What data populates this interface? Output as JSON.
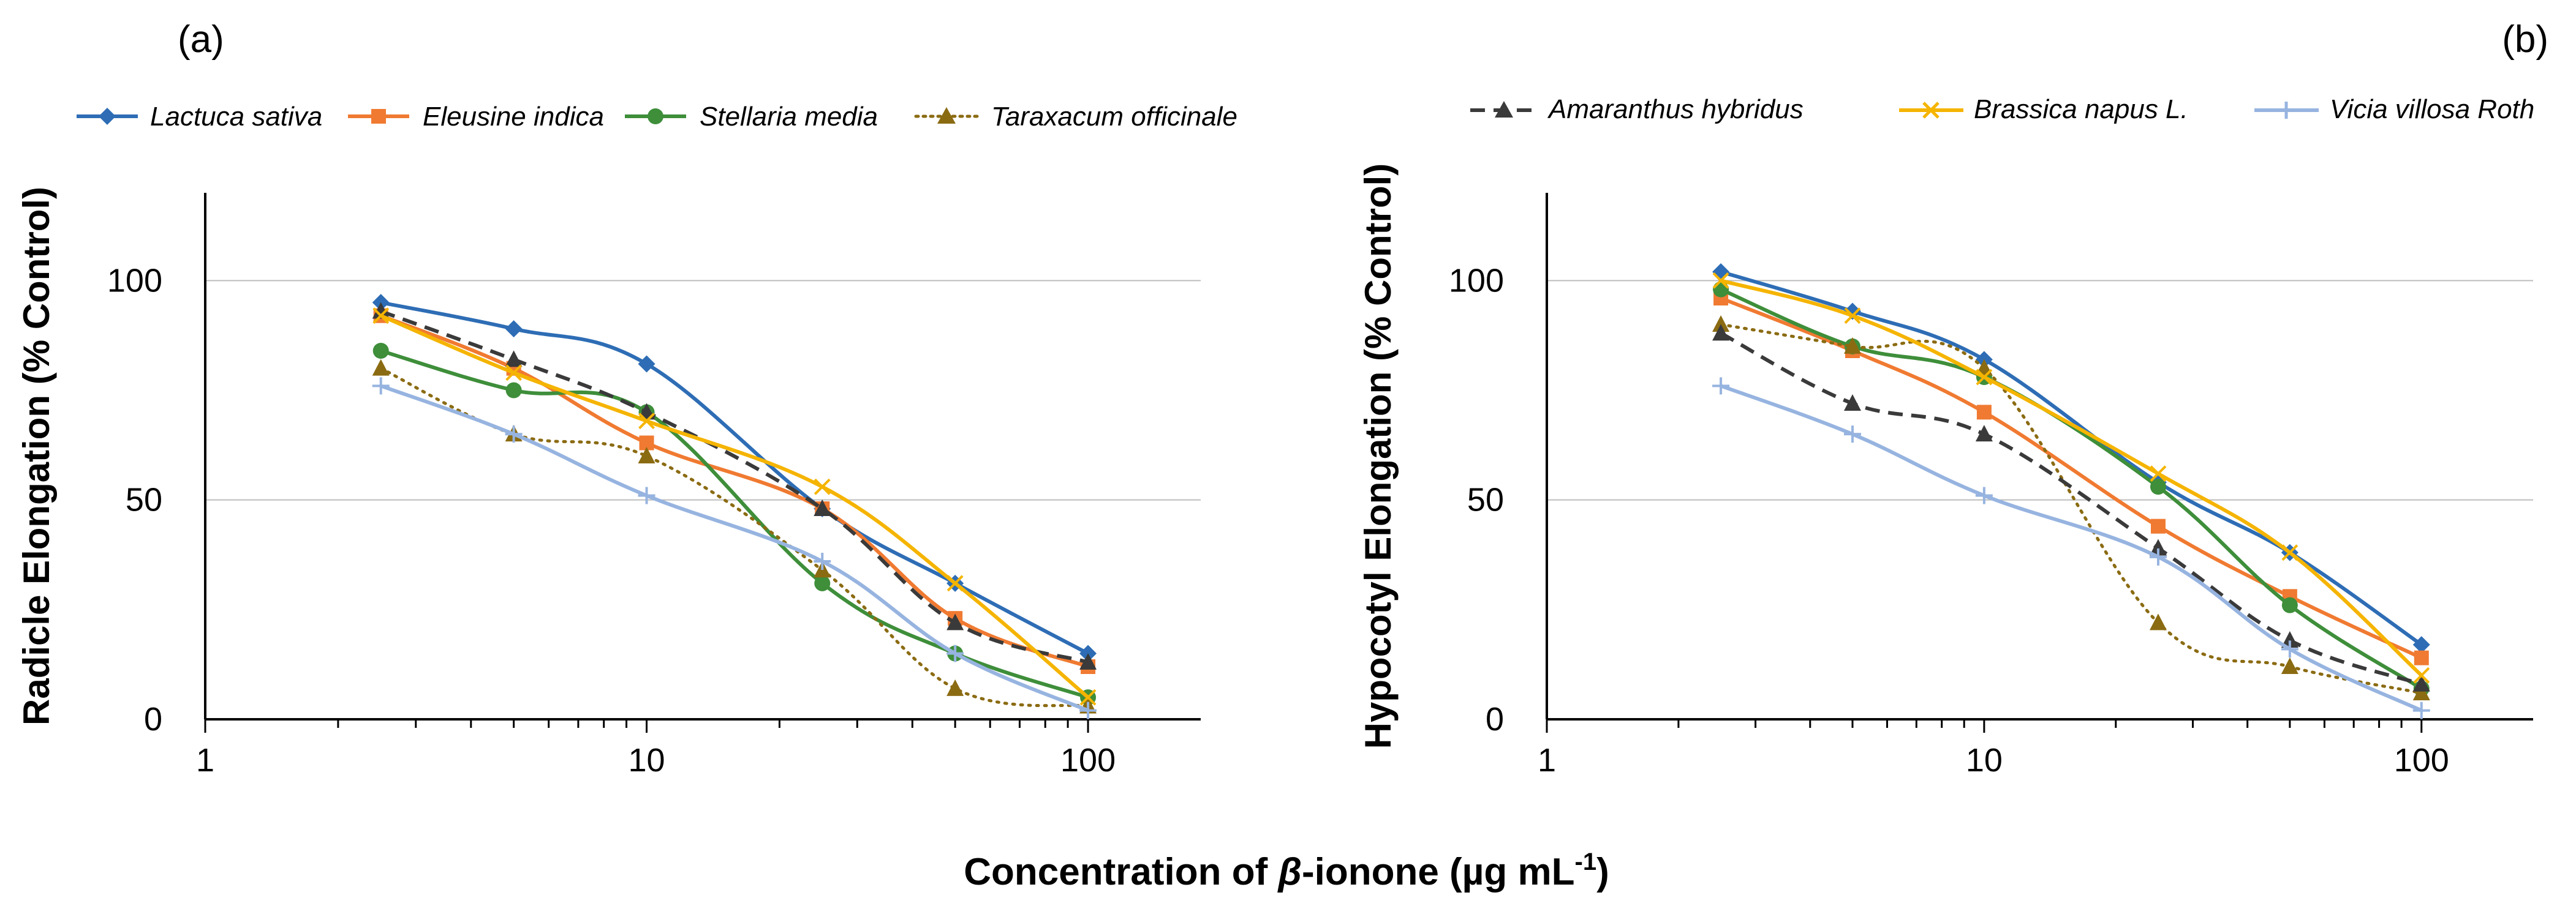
{
  "figure": {
    "xlabel_main": "Concentration of ",
    "xlabel_beta": "β",
    "xlabel_rest": "-ionone (µg mL",
    "xlabel_sup": "-1",
    "xlabel_close": ")"
  },
  "legend_row_a": [
    "Lactuca sativa",
    "Eleusine indica",
    "Stellaria media",
    "Taraxacum officinale"
  ],
  "legend_row_b": [
    "Amaranthus hybridus",
    "Brassica napus L.",
    "Vicia villosa Roth"
  ],
  "series_styles": [
    {
      "name": "Lactuca sativa",
      "color": "#2E6DB5",
      "marker": "diamond",
      "dash": "solid"
    },
    {
      "name": "Eleusine indica",
      "color": "#F07A31",
      "marker": "square",
      "dash": "solid"
    },
    {
      "name": "Stellaria media",
      "color": "#3E8E3A",
      "marker": "circle",
      "dash": "solid"
    },
    {
      "name": "Taraxacum officinale",
      "color": "#8B6B12",
      "marker": "triangle",
      "dash": "dotted"
    },
    {
      "name": "Amaranthus hybridus",
      "color": "#3A3A3A",
      "marker": "triangle",
      "dash": "dashed"
    },
    {
      "name": "Brassica napus L.",
      "color": "#F5B400",
      "marker": "x",
      "dash": "solid"
    },
    {
      "name": "Vicia villosa Roth",
      "color": "#97B4E0",
      "marker": "plus",
      "dash": "solid"
    }
  ],
  "chart_data": [
    {
      "type": "line",
      "panel_label": "(a)",
      "ylabel": "Radicle Elongation (% Control)",
      "xscale": "log",
      "xlim": [
        1,
        180
      ],
      "ylim": [
        0,
        120
      ],
      "xticks": [
        1,
        10,
        100
      ],
      "yticks": [
        0,
        50,
        100
      ],
      "grid": "horizontal",
      "x": [
        2.5,
        5,
        10,
        25,
        50,
        100
      ],
      "series": [
        {
          "name": "Lactuca sativa",
          "values": [
            95,
            89,
            81,
            48,
            31,
            15
          ]
        },
        {
          "name": "Eleusine indica",
          "values": [
            92,
            80,
            63,
            48,
            23,
            12
          ]
        },
        {
          "name": "Stellaria media",
          "values": [
            84,
            75,
            70,
            31,
            15,
            5
          ]
        },
        {
          "name": "Taraxacum officinale",
          "values": [
            80,
            65,
            60,
            34,
            7,
            3
          ]
        },
        {
          "name": "Amaranthus hybridus",
          "values": [
            93,
            82,
            70,
            48,
            22,
            13
          ]
        },
        {
          "name": "Brassica napus L.",
          "values": [
            92,
            79,
            68,
            53,
            31,
            5
          ]
        },
        {
          "name": "Vicia villosa Roth",
          "values": [
            76,
            65,
            51,
            36,
            15,
            2
          ]
        }
      ]
    },
    {
      "type": "line",
      "panel_label": "(b)",
      "ylabel": "Hypocotyl Elongation (% Control)",
      "xscale": "log",
      "xlim": [
        1,
        180
      ],
      "ylim": [
        0,
        120
      ],
      "xticks": [
        1,
        10,
        100
      ],
      "yticks": [
        0,
        50,
        100
      ],
      "grid": "horizontal",
      "x": [
        2.5,
        5,
        10,
        25,
        50,
        100
      ],
      "series": [
        {
          "name": "Lactuca sativa",
          "values": [
            102,
            93,
            82,
            54,
            38,
            17
          ]
        },
        {
          "name": "Eleusine indica",
          "values": [
            96,
            84,
            70,
            44,
            28,
            14
          ]
        },
        {
          "name": "Stellaria media",
          "values": [
            98,
            85,
            78,
            53,
            26,
            7
          ]
        },
        {
          "name": "Taraxacum officinale",
          "values": [
            90,
            85,
            80,
            22,
            12,
            6
          ]
        },
        {
          "name": "Amaranthus hybridus",
          "values": [
            88,
            72,
            65,
            39,
            18,
            8
          ]
        },
        {
          "name": "Brassica napus L.",
          "values": [
            100,
            92,
            78,
            56,
            38,
            10
          ]
        },
        {
          "name": "Vicia villosa Roth",
          "values": [
            76,
            65,
            51,
            37,
            16,
            2
          ]
        }
      ]
    }
  ]
}
